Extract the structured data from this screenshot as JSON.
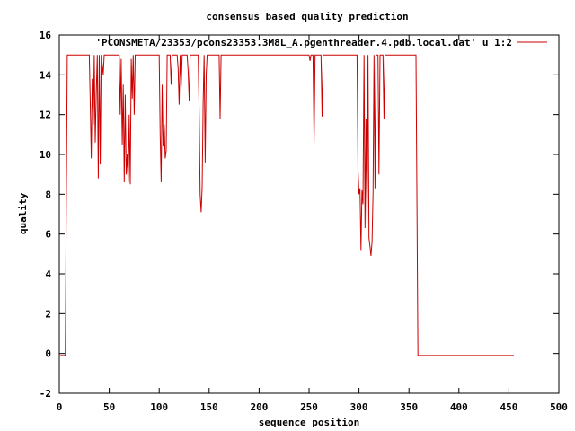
{
  "chart_data": {
    "type": "line",
    "title": "consensus based quality prediction",
    "xlabel": "sequence position",
    "ylabel": "quality",
    "xlim": [
      0,
      500
    ],
    "ylim": [
      -2,
      16
    ],
    "xticks": [
      0,
      50,
      100,
      150,
      200,
      250,
      300,
      350,
      400,
      450,
      500
    ],
    "yticks": [
      -2,
      0,
      2,
      4,
      6,
      8,
      10,
      12,
      14,
      16
    ],
    "legend_position": "top-right",
    "grid": false,
    "series": [
      {
        "name": "'PCONSMETA/23353/pcons23353.3M8L_A.pgenthreader.4.pdb.local.dat' u 1:2",
        "color": "#cc0000",
        "points": [
          [
            1,
            -0.1
          ],
          [
            6,
            -0.1
          ],
          [
            7,
            7.5
          ],
          [
            8,
            15
          ],
          [
            30,
            15
          ],
          [
            31,
            12.5
          ],
          [
            32,
            9.8
          ],
          [
            33,
            13.8
          ],
          [
            34,
            11.5
          ],
          [
            35,
            15
          ],
          [
            36,
            10.6
          ],
          [
            37,
            13
          ],
          [
            38,
            15
          ],
          [
            39,
            8.8
          ],
          [
            40,
            15
          ],
          [
            41,
            9.5
          ],
          [
            42,
            15
          ],
          [
            44,
            14
          ],
          [
            45,
            15
          ],
          [
            60,
            15
          ],
          [
            61,
            12
          ],
          [
            62,
            14.8
          ],
          [
            63,
            10.5
          ],
          [
            64,
            13.5
          ],
          [
            65,
            8.6
          ],
          [
            66,
            13
          ],
          [
            67,
            9
          ],
          [
            68,
            10
          ],
          [
            69,
            8.6
          ],
          [
            70,
            12
          ],
          [
            71,
            8.5
          ],
          [
            72,
            14.8
          ],
          [
            73,
            12.8
          ],
          [
            74,
            15
          ],
          [
            75,
            12
          ],
          [
            76,
            15
          ],
          [
            100,
            15
          ],
          [
            101,
            11
          ],
          [
            102,
            8.6
          ],
          [
            103,
            13.5
          ],
          [
            104,
            10.4
          ],
          [
            105,
            11.5
          ],
          [
            106,
            9.8
          ],
          [
            107,
            10.2
          ],
          [
            108,
            15
          ],
          [
            111,
            15
          ],
          [
            112,
            13.5
          ],
          [
            113,
            15
          ],
          [
            118,
            15
          ],
          [
            119,
            14.3
          ],
          [
            120,
            12.5
          ],
          [
            121,
            15
          ],
          [
            122,
            13.4
          ],
          [
            123,
            15
          ],
          [
            128,
            15
          ],
          [
            129,
            14.2
          ],
          [
            130,
            12.7
          ],
          [
            131,
            15
          ],
          [
            139,
            15
          ],
          [
            140,
            12
          ],
          [
            141,
            8
          ],
          [
            142,
            7.1
          ],
          [
            143,
            8.3
          ],
          [
            144,
            12.5
          ],
          [
            145,
            15
          ],
          [
            146,
            9.6
          ],
          [
            147,
            14
          ],
          [
            148,
            15
          ],
          [
            160,
            15
          ],
          [
            161,
            11.8
          ],
          [
            162,
            15
          ],
          [
            250,
            15
          ],
          [
            251,
            14.7
          ],
          [
            252,
            15
          ],
          [
            254,
            15
          ],
          [
            255,
            10.6
          ],
          [
            256,
            15
          ],
          [
            262,
            15
          ],
          [
            263,
            11.9
          ],
          [
            264,
            15
          ],
          [
            298,
            15
          ],
          [
            299,
            9.2
          ],
          [
            300,
            8
          ],
          [
            301,
            8.3
          ],
          [
            302,
            5.2
          ],
          [
            303,
            8.2
          ],
          [
            304,
            7.5
          ],
          [
            305,
            15
          ],
          [
            306,
            6.3
          ],
          [
            307,
            11.8
          ],
          [
            308,
            6.4
          ],
          [
            309,
            15
          ],
          [
            310,
            5.8
          ],
          [
            311,
            5.4
          ],
          [
            312,
            4.9
          ],
          [
            313,
            5.6
          ],
          [
            314,
            8
          ],
          [
            315,
            15
          ],
          [
            316,
            8.3
          ],
          [
            317,
            15
          ],
          [
            319,
            15
          ],
          [
            320,
            9
          ],
          [
            321,
            15
          ],
          [
            324,
            15
          ],
          [
            325,
            11.8
          ],
          [
            326,
            15
          ],
          [
            357,
            15
          ],
          [
            358,
            7.5
          ],
          [
            359,
            -0.1
          ],
          [
            455,
            -0.1
          ]
        ]
      }
    ]
  }
}
